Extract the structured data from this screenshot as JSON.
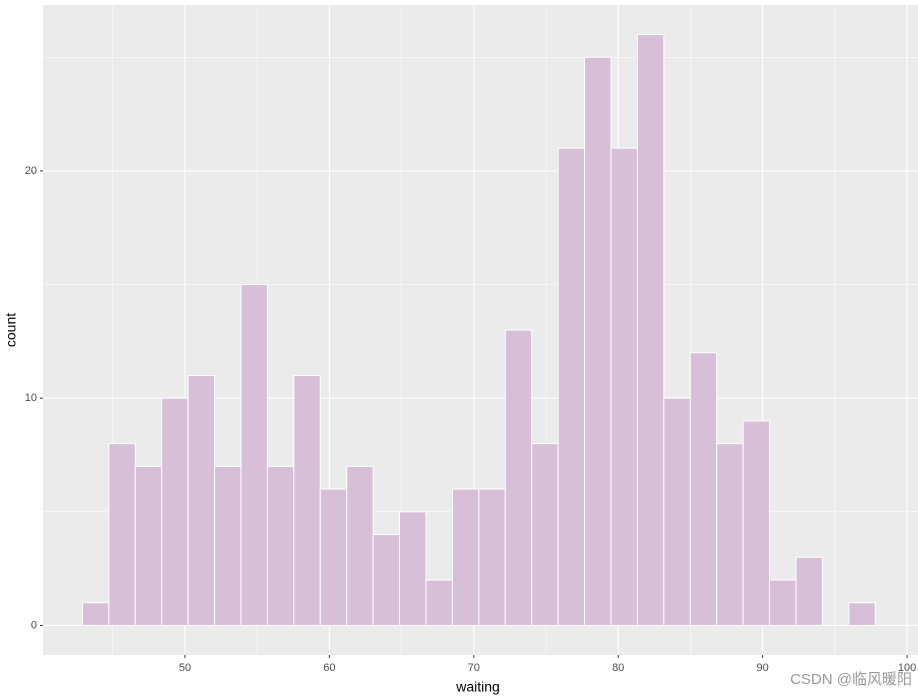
{
  "chart_data": {
    "type": "histogram",
    "xlabel": "waiting",
    "ylabel": "count",
    "bins": [
      42.9,
      44.73,
      46.56,
      48.39,
      50.22,
      52.05,
      53.88,
      55.71,
      57.54,
      59.37,
      61.2,
      63.03,
      64.86,
      66.69,
      68.52,
      70.35,
      72.18,
      74.01,
      75.84,
      77.67,
      79.5,
      81.33,
      83.16,
      84.99,
      86.82,
      88.65,
      90.48,
      92.31,
      94.14,
      95.97,
      97.8
    ],
    "values": [
      1,
      8,
      7,
      10,
      11,
      7,
      15,
      7,
      11,
      6,
      7,
      4,
      5,
      2,
      6,
      6,
      13,
      8,
      21,
      25,
      21,
      26,
      10,
      12,
      8,
      9,
      2,
      3,
      0,
      1
    ],
    "color": "#d8bfd8",
    "edgecolor": "#ffffff",
    "xlim": [
      40.17,
      100.76
    ],
    "ylim": [
      -1.3,
      27.3
    ],
    "xticks": [
      50,
      60,
      70,
      80,
      90,
      100
    ],
    "yticks": [
      0,
      10,
      20
    ],
    "grid": true,
    "minor_grid": true,
    "watermark": "CSDN @临风暖阳"
  }
}
